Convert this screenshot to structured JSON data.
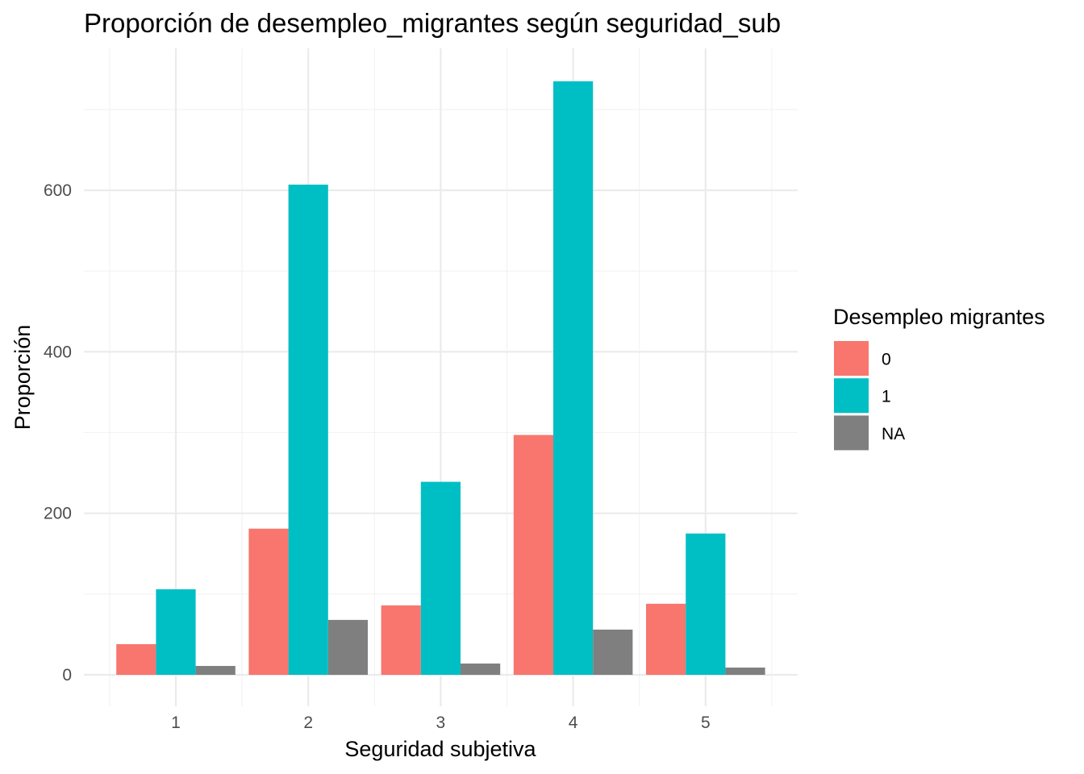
{
  "chart_data": {
    "type": "bar",
    "title": "Proporción de desempleo_migrantes según seguridad_sub",
    "xlabel": "Seguridad subjetiva",
    "ylabel": "Proporción",
    "categories": [
      "1",
      "2",
      "3",
      "4",
      "5"
    ],
    "y_ticks": [
      0,
      200,
      400,
      600
    ],
    "y_tick_labels": [
      "0",
      "200",
      "400",
      "600"
    ],
    "ylim": [
      -32,
      770
    ],
    "grid": true,
    "legend": {
      "title": "Desempleo migrantes",
      "position": "right"
    },
    "series": [
      {
        "name": "0",
        "color": "#F8766D",
        "values": [
          38,
          181,
          86,
          297,
          88
        ]
      },
      {
        "name": "1",
        "color": "#00BFC4",
        "values": [
          106,
          607,
          239,
          735,
          175
        ]
      },
      {
        "name": "NA",
        "color": "#7F7F7F",
        "values": [
          11,
          68,
          14,
          56,
          9
        ]
      }
    ]
  }
}
